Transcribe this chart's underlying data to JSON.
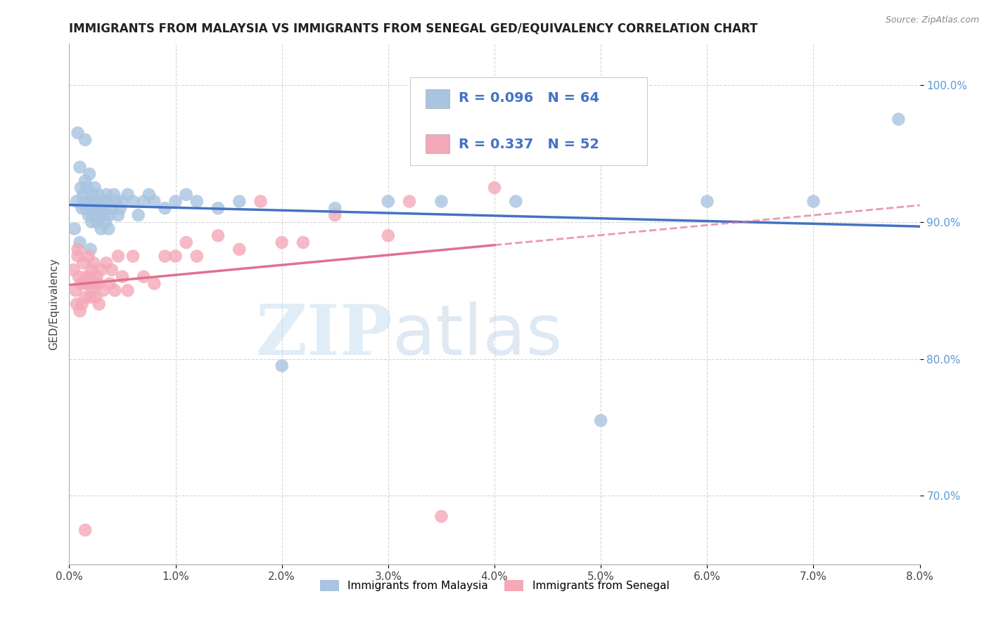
{
  "title": "IMMIGRANTS FROM MALAYSIA VS IMMIGRANTS FROM SENEGAL GED/EQUIVALENCY CORRELATION CHART",
  "source": "Source: ZipAtlas.com",
  "ylabel": "GED/Equivalency",
  "xlim": [
    0.0,
    8.0
  ],
  "ylim": [
    65.0,
    103.0
  ],
  "malaysia_color": "#a8c4e0",
  "senegal_color": "#f4a8b8",
  "malaysia_line_color": "#4472c4",
  "senegal_line_color": "#e07090",
  "malaysia_R": 0.096,
  "malaysia_N": 64,
  "senegal_R": 0.337,
  "senegal_N": 52,
  "legend_label_malaysia": "Immigrants from Malaysia",
  "legend_label_senegal": "Immigrants from Senegal",
  "malaysia_x": [
    0.05,
    0.07,
    0.08,
    0.1,
    0.11,
    0.12,
    0.13,
    0.14,
    0.15,
    0.15,
    0.16,
    0.17,
    0.18,
    0.18,
    0.19,
    0.2,
    0.21,
    0.22,
    0.22,
    0.23,
    0.24,
    0.25,
    0.26,
    0.27,
    0.28,
    0.29,
    0.3,
    0.31,
    0.32,
    0.33,
    0.34,
    0.35,
    0.36,
    0.37,
    0.38,
    0.4,
    0.42,
    0.44,
    0.46,
    0.48,
    0.5,
    0.55,
    0.6,
    0.65,
    0.7,
    0.75,
    0.8,
    0.9,
    1.0,
    1.1,
    1.2,
    1.4,
    1.6,
    2.0,
    2.5,
    3.0,
    3.5,
    4.2,
    5.0,
    6.0,
    7.0,
    7.8,
    0.1,
    0.2
  ],
  "malaysia_y": [
    89.5,
    91.5,
    96.5,
    94.0,
    92.5,
    91.0,
    92.0,
    91.5,
    93.0,
    96.0,
    91.0,
    92.5,
    91.0,
    90.5,
    93.5,
    91.5,
    90.0,
    92.0,
    90.5,
    91.0,
    92.5,
    91.5,
    90.0,
    92.0,
    91.0,
    90.5,
    89.5,
    91.0,
    90.5,
    91.5,
    90.0,
    92.0,
    91.5,
    89.5,
    90.5,
    91.0,
    92.0,
    91.5,
    90.5,
    91.0,
    91.5,
    92.0,
    91.5,
    90.5,
    91.5,
    92.0,
    91.5,
    91.0,
    91.5,
    92.0,
    91.5,
    91.0,
    91.5,
    79.5,
    91.0,
    91.5,
    91.5,
    91.5,
    75.5,
    91.5,
    91.5,
    97.5,
    88.5,
    88.0
  ],
  "senegal_x": [
    0.04,
    0.06,
    0.07,
    0.08,
    0.09,
    0.1,
    0.11,
    0.12,
    0.13,
    0.14,
    0.15,
    0.16,
    0.17,
    0.18,
    0.19,
    0.2,
    0.21,
    0.22,
    0.23,
    0.24,
    0.25,
    0.26,
    0.27,
    0.28,
    0.3,
    0.32,
    0.35,
    0.38,
    0.4,
    0.43,
    0.46,
    0.5,
    0.55,
    0.6,
    0.7,
    0.8,
    0.9,
    1.0,
    1.1,
    1.2,
    1.4,
    1.6,
    1.8,
    2.0,
    2.2,
    2.5,
    3.0,
    3.2,
    3.5,
    4.0,
    0.08,
    0.15
  ],
  "senegal_y": [
    86.5,
    85.0,
    84.0,
    87.5,
    86.0,
    83.5,
    85.5,
    84.0,
    87.0,
    85.5,
    84.5,
    86.0,
    85.5,
    87.5,
    86.0,
    84.5,
    86.5,
    85.0,
    87.0,
    85.5,
    84.5,
    86.0,
    85.5,
    84.0,
    86.5,
    85.0,
    87.0,
    85.5,
    86.5,
    85.0,
    87.5,
    86.0,
    85.0,
    87.5,
    86.0,
    85.5,
    87.5,
    87.5,
    88.5,
    87.5,
    89.0,
    88.0,
    91.5,
    88.5,
    88.5,
    90.5,
    89.0,
    91.5,
    68.5,
    92.5,
    88.0,
    67.5
  ],
  "watermark_zip": "ZIP",
  "watermark_atlas": "atlas",
  "background_color": "#ffffff",
  "grid_color": "#cccccc",
  "title_fontsize": 12,
  "axis_label_fontsize": 11,
  "tick_fontsize": 11,
  "legend_fontsize": 14
}
